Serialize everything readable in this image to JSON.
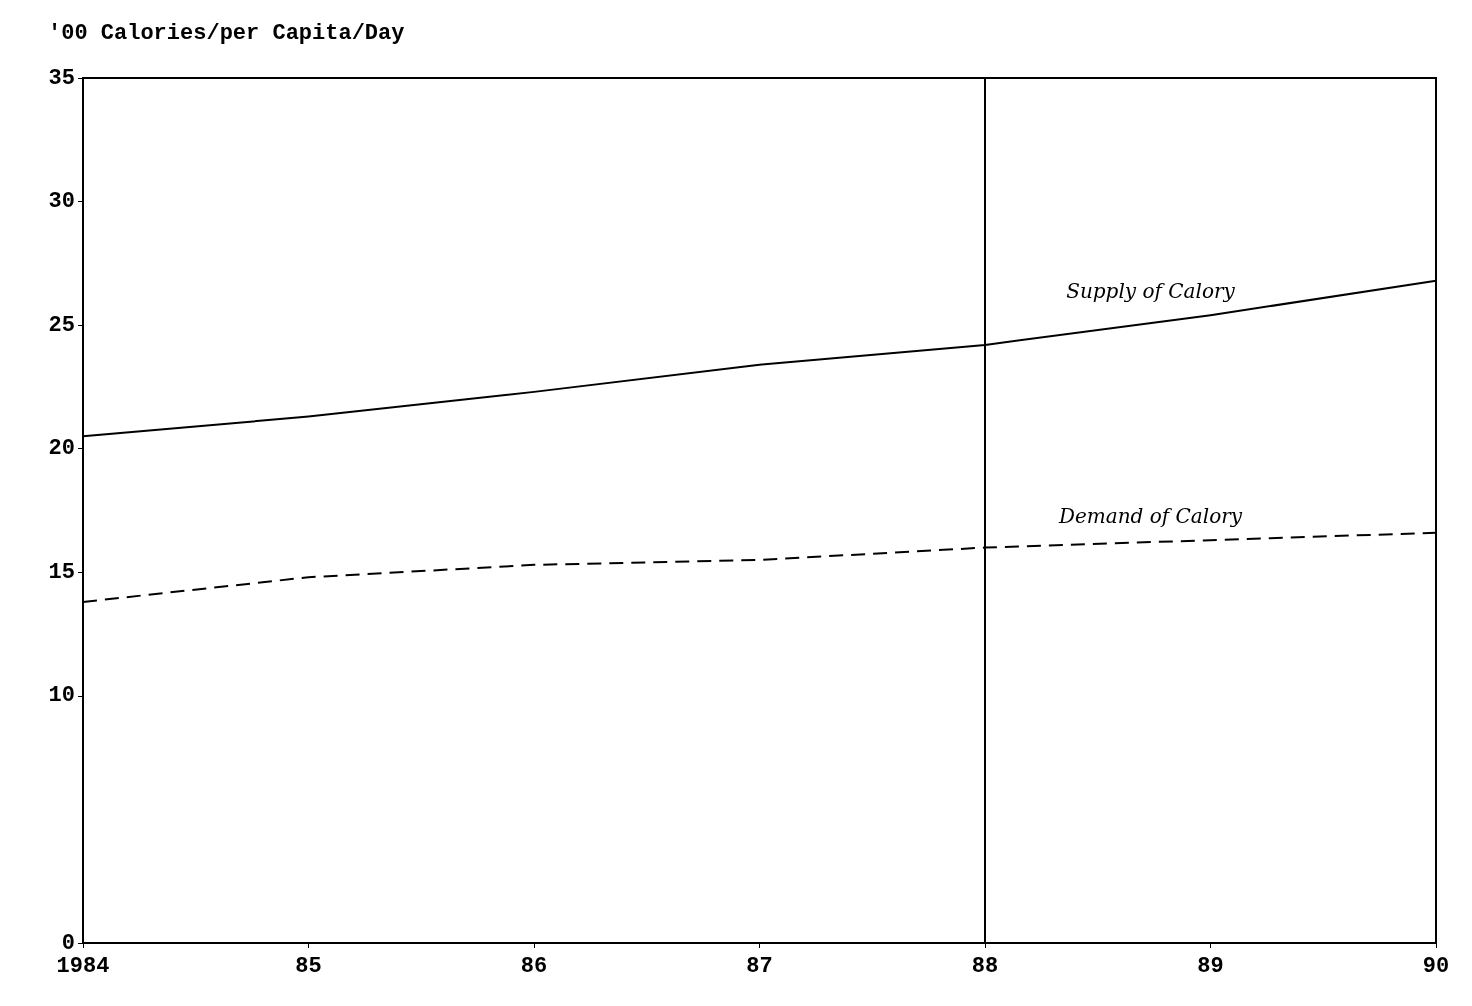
{
  "chart_data": {
    "type": "line",
    "ylabel": "'00 Calories/per Capita/Day",
    "x": [
      1984,
      1985,
      1986,
      1987,
      1988,
      1989,
      1990
    ],
    "series": [
      {
        "name": "Supply of Calory",
        "color": "#000000",
        "line_style": "solid",
        "values": [
          20.5,
          21.3,
          22.3,
          23.4,
          24.2,
          25.4,
          26.8
        ]
      },
      {
        "name": "Demand of Calory",
        "color": "#000000",
        "line_style": "dashed",
        "values": [
          13.8,
          14.8,
          15.3,
          15.5,
          16.0,
          16.3,
          16.6
        ]
      }
    ],
    "xlim": [
      1984,
      1990
    ],
    "xticks": [
      {
        "value": 1984,
        "label": "1984"
      },
      {
        "value": 1985,
        "label": "85"
      },
      {
        "value": 1986,
        "label": "86"
      },
      {
        "value": 1987,
        "label": "87"
      },
      {
        "value": 1988,
        "label": "88"
      },
      {
        "value": 1989,
        "label": "89"
      },
      {
        "value": 1990,
        "label": "90"
      }
    ],
    "ylim": [
      0,
      35
    ],
    "yticks": [
      0,
      10,
      15,
      20,
      25,
      30,
      35
    ],
    "ref_lines": [
      {
        "axis": "x",
        "value": 1988,
        "color": "#000000"
      }
    ],
    "grid": false,
    "legend": false,
    "marker": "none"
  }
}
